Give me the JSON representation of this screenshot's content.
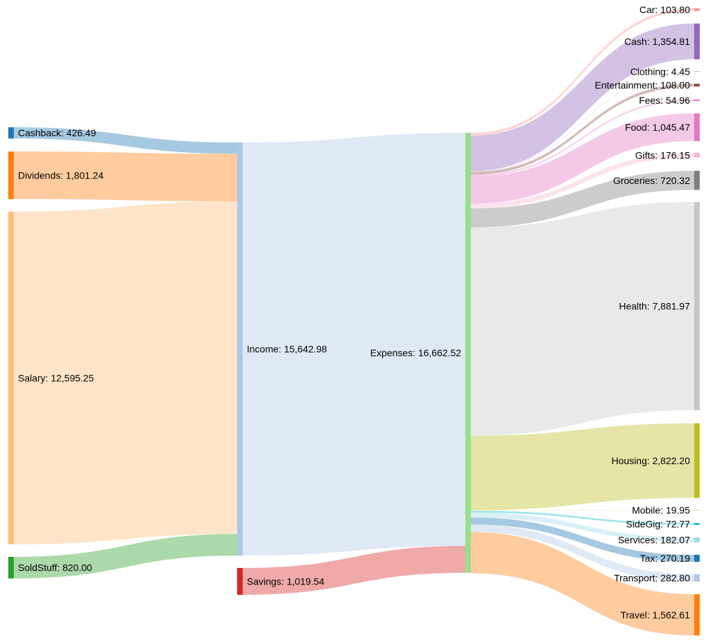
{
  "chart_data": {
    "type": "sankey",
    "nodes": [
      {
        "id": "cashback",
        "label": "Cashback: 426.49",
        "value": 426.49,
        "color": "#1f77b4",
        "column": 0
      },
      {
        "id": "dividends",
        "label": "Dividends: 1,801.24",
        "value": 1801.24,
        "color": "#ff7f0e",
        "column": 0
      },
      {
        "id": "salary",
        "label": "Salary: 12,595.25",
        "value": 12595.25,
        "color": "#ffbb78",
        "column": 0
      },
      {
        "id": "soldstuff",
        "label": "SoldStuff: 820.00",
        "value": 820.0,
        "color": "#2ca02c",
        "column": 0
      },
      {
        "id": "income",
        "label": "Income: 15,642.98",
        "value": 15642.98,
        "color": "#aec7e8",
        "column": 1
      },
      {
        "id": "savings",
        "label": "Savings: 1,019.54",
        "value": 1019.54,
        "color": "#d62728",
        "column": 1
      },
      {
        "id": "expenses",
        "label": "Expenses: 16,662.52",
        "value": 16662.52,
        "color": "#98df8a",
        "column": 2
      },
      {
        "id": "car",
        "label": "Car: 103.80",
        "value": 103.8,
        "color": "#ff9896",
        "column": 3
      },
      {
        "id": "cash",
        "label": "Cash: 1,354.81",
        "value": 1354.81,
        "color": "#9467bd",
        "column": 3
      },
      {
        "id": "clothing",
        "label": "Clothing: 4.45",
        "value": 4.45,
        "color": "#c5b0d5",
        "column": 3
      },
      {
        "id": "entertainment",
        "label": "Entertainment: 108.00",
        "value": 108.0,
        "color": "#8c564b",
        "column": 3
      },
      {
        "id": "fees",
        "label": "Fees: 54.96",
        "value": 54.96,
        "color": "#e377c2",
        "column": 3
      },
      {
        "id": "food",
        "label": "Food: 1,045.47",
        "value": 1045.47,
        "color": "#e377c2",
        "column": 3
      },
      {
        "id": "gifts",
        "label": "Gifts: 176.15",
        "value": 176.15,
        "color": "#f7b6d2",
        "column": 3
      },
      {
        "id": "groceries",
        "label": "Groceries: 720.32",
        "value": 720.32,
        "color": "#7f7f7f",
        "column": 3
      },
      {
        "id": "health",
        "label": "Health: 7,881.97",
        "value": 7881.97,
        "color": "#c7c7c7",
        "column": 3
      },
      {
        "id": "housing",
        "label": "Housing: 2,822.20",
        "value": 2822.2,
        "color": "#bcbd22",
        "column": 3
      },
      {
        "id": "mobile",
        "label": "Mobile: 19.95",
        "value": 19.95,
        "color": "#dbdb8d",
        "column": 3
      },
      {
        "id": "sidegig",
        "label": "SideGig: 72.77",
        "value": 72.77,
        "color": "#17becf",
        "column": 3
      },
      {
        "id": "services",
        "label": "Services: 182.07",
        "value": 182.07,
        "color": "#9edae5",
        "column": 3
      },
      {
        "id": "tax",
        "label": "Tax: 270.19",
        "value": 270.19,
        "color": "#1f77b4",
        "column": 3
      },
      {
        "id": "transport",
        "label": "Transport: 282.80",
        "value": 282.8,
        "color": "#aec7e8",
        "column": 3
      },
      {
        "id": "travel",
        "label": "Travel: 1,562.61",
        "value": 1562.61,
        "color": "#ff7f0e",
        "column": 3
      }
    ],
    "links": [
      {
        "source": "cashback",
        "target": "income",
        "value": 426.49
      },
      {
        "source": "dividends",
        "target": "income",
        "value": 1801.24
      },
      {
        "source": "salary",
        "target": "income",
        "value": 12595.25
      },
      {
        "source": "soldstuff",
        "target": "income",
        "value": 820.0
      },
      {
        "source": "income",
        "target": "expenses",
        "value": 15642.98
      },
      {
        "source": "savings",
        "target": "expenses",
        "value": 1019.54
      },
      {
        "source": "expenses",
        "target": "car",
        "value": 103.8
      },
      {
        "source": "expenses",
        "target": "cash",
        "value": 1354.81
      },
      {
        "source": "expenses",
        "target": "clothing",
        "value": 4.45
      },
      {
        "source": "expenses",
        "target": "entertainment",
        "value": 108.0
      },
      {
        "source": "expenses",
        "target": "fees",
        "value": 54.96
      },
      {
        "source": "expenses",
        "target": "food",
        "value": 1045.47
      },
      {
        "source": "expenses",
        "target": "gifts",
        "value": 176.15
      },
      {
        "source": "expenses",
        "target": "groceries",
        "value": 720.32
      },
      {
        "source": "expenses",
        "target": "health",
        "value": 7881.97
      },
      {
        "source": "expenses",
        "target": "housing",
        "value": 2822.2
      },
      {
        "source": "expenses",
        "target": "mobile",
        "value": 19.95
      },
      {
        "source": "expenses",
        "target": "sidegig",
        "value": 72.77
      },
      {
        "source": "expenses",
        "target": "services",
        "value": 182.07
      },
      {
        "source": "expenses",
        "target": "tax",
        "value": 270.19
      },
      {
        "source": "expenses",
        "target": "transport",
        "value": 282.8
      },
      {
        "source": "expenses",
        "target": "travel",
        "value": 1562.61
      }
    ]
  }
}
